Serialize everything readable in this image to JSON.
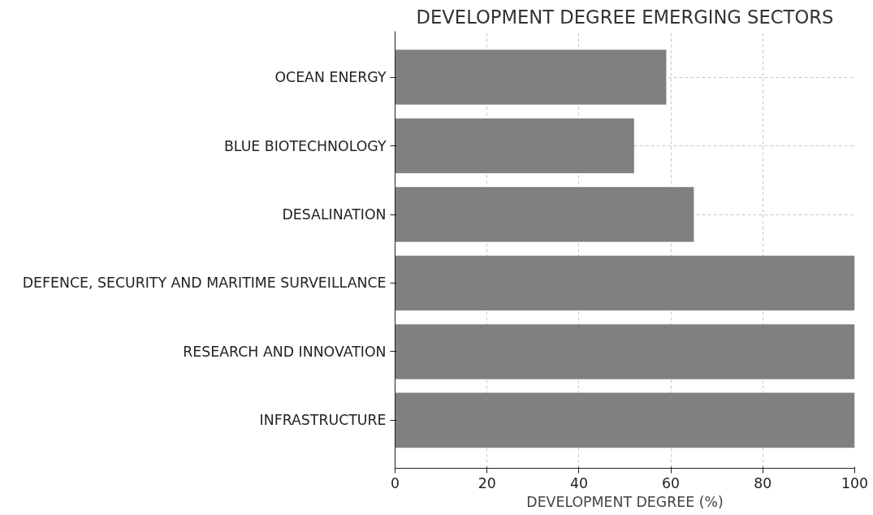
{
  "chart_data": {
    "type": "bar",
    "orientation": "horizontal",
    "title": "DEVELOPMENT DEGREE EMERGING SECTORS",
    "xlabel": "DEVELOPMENT DEGREE (%)",
    "categories": [
      "OCEAN ENERGY",
      "BLUE BIOTECHNOLOGY",
      "DESALINATION",
      "DEFENCE, SECURITY AND MARITIME SURVEILLANCE",
      "RESEARCH AND INNOVATION",
      "INFRASTRUCTURE"
    ],
    "values": [
      59,
      52,
      65,
      100,
      100,
      100
    ],
    "color": "#808080",
    "xlim": [
      0,
      100
    ],
    "xticks": [
      0,
      20,
      40,
      60,
      80,
      100
    ],
    "grid": true
  }
}
